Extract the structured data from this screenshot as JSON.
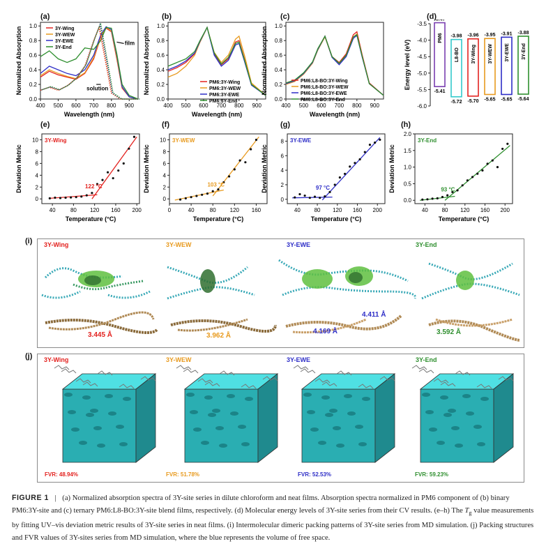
{
  "panel_letters": [
    "(a)",
    "(b)",
    "(c)",
    "(d)",
    "(e)",
    "(f)",
    "(g)",
    "(h)",
    "(i)",
    "(j)"
  ],
  "colors": {
    "wing": "#e3221f",
    "wew": "#e89a1e",
    "ewe": "#2e2ec7",
    "end": "#2f8f2f",
    "pm6": "#7a3fb0",
    "l8bo": "#34c9cc"
  },
  "absorption_a": {
    "legend": [
      "3Y-Wing",
      "3Y-WEW",
      "3Y-EWE",
      "3Y-End"
    ],
    "annotations": [
      "film",
      "solution"
    ],
    "xlabel": "Wavelength (nm)",
    "ylabel": "Normalized Absorption"
  },
  "absorption_b": {
    "legend": [
      "PM6:3Y-Wing",
      "PM6:3Y-WEW",
      "PM6:3Y-EWE",
      "PM6:3Y-End"
    ],
    "xlabel": "Wavelength (nm)",
    "ylabel": "Normalized Absorption"
  },
  "absorption_c": {
    "legend": [
      "PM6:L8-BO:3Y-Wing",
      "PM6:L8-BO:3Y-WEW",
      "PM6:L8-BO:3Y-EWE",
      "PM6:L8-BO:3Y-End"
    ],
    "xlabel": "Wavelength (nm)",
    "ylabel": "Normalized Absorption"
  },
  "chart_data": [
    {
      "type": "line",
      "panel": "a",
      "xlim": [
        400,
        950
      ],
      "ylim": [
        0,
        1.05
      ],
      "xticks": [
        "400",
        "500",
        "600",
        "700",
        "800",
        "900"
      ],
      "yticks": [
        "0.0",
        "0.2",
        "0.4",
        "0.6",
        "0.8",
        "1.0"
      ],
      "series": [
        {
          "name": "3Y-Wing",
          "x": [
            400,
            450,
            500,
            550,
            600,
            650,
            700,
            740,
            770,
            800,
            830,
            860,
            900,
            950
          ],
          "y": [
            0.3,
            0.38,
            0.33,
            0.3,
            0.27,
            0.35,
            0.55,
            0.85,
            0.97,
            0.92,
            0.55,
            0.15,
            0.03,
            0.0
          ]
        },
        {
          "name": "3Y-WEW",
          "x": [
            400,
            450,
            500,
            550,
            600,
            650,
            700,
            740,
            770,
            800,
            830,
            860,
            900,
            950
          ],
          "y": [
            0.32,
            0.4,
            0.35,
            0.31,
            0.28,
            0.36,
            0.57,
            0.86,
            0.98,
            0.93,
            0.57,
            0.16,
            0.03,
            0.0
          ]
        },
        {
          "name": "3Y-EWE",
          "x": [
            400,
            450,
            500,
            550,
            600,
            650,
            700,
            740,
            770,
            800,
            830,
            860,
            900,
            950
          ],
          "y": [
            0.35,
            0.45,
            0.4,
            0.35,
            0.32,
            0.4,
            0.6,
            0.88,
            0.99,
            0.95,
            0.6,
            0.17,
            0.03,
            0.0
          ]
        },
        {
          "name": "3Y-End",
          "x": [
            400,
            450,
            500,
            550,
            600,
            650,
            700,
            740,
            770,
            800,
            830,
            860,
            900,
            950
          ],
          "y": [
            0.58,
            0.66,
            0.55,
            0.5,
            0.55,
            0.7,
            0.68,
            0.8,
            0.98,
            0.97,
            0.62,
            0.2,
            0.05,
            0.0
          ]
        }
      ]
    },
    {
      "type": "line",
      "panel": "b",
      "xlim": [
        400,
        950
      ],
      "ylim": [
        0,
        1.05
      ],
      "xticks": [
        "400",
        "500",
        "600",
        "700",
        "800",
        "900"
      ],
      "yticks": [
        "0.0",
        "0.2",
        "0.4",
        "0.6",
        "0.8",
        "1.0"
      ],
      "series": [
        {
          "name": "PM6:3Y-Wing",
          "x": [
            400,
            450,
            500,
            550,
            580,
            620,
            660,
            700,
            740,
            780,
            800,
            830,
            870,
            950
          ],
          "y": [
            0.38,
            0.43,
            0.5,
            0.62,
            0.78,
            0.98,
            0.62,
            0.47,
            0.55,
            0.78,
            0.8,
            0.55,
            0.2,
            0.05
          ]
        },
        {
          "name": "PM6:3Y-WEW",
          "x": [
            400,
            450,
            500,
            550,
            580,
            620,
            660,
            700,
            740,
            780,
            800,
            830,
            870,
            950
          ],
          "y": [
            0.3,
            0.35,
            0.45,
            0.6,
            0.78,
            0.98,
            0.64,
            0.5,
            0.6,
            0.82,
            0.86,
            0.6,
            0.22,
            0.05
          ]
        },
        {
          "name": "PM6:3Y-EWE",
          "x": [
            400,
            450,
            500,
            550,
            580,
            620,
            660,
            700,
            740,
            780,
            800,
            830,
            870,
            950
          ],
          "y": [
            0.4,
            0.45,
            0.52,
            0.63,
            0.79,
            0.98,
            0.6,
            0.45,
            0.53,
            0.74,
            0.76,
            0.52,
            0.19,
            0.05
          ]
        },
        {
          "name": "PM6:3Y-End",
          "x": [
            400,
            450,
            500,
            550,
            580,
            620,
            660,
            700,
            740,
            780,
            800,
            830,
            870,
            950
          ],
          "y": [
            0.45,
            0.5,
            0.55,
            0.65,
            0.8,
            0.98,
            0.63,
            0.48,
            0.57,
            0.76,
            0.78,
            0.54,
            0.2,
            0.05
          ]
        }
      ]
    },
    {
      "type": "line",
      "panel": "c",
      "xlim": [
        400,
        950
      ],
      "ylim": [
        0,
        1.05
      ],
      "xticks": [
        "400",
        "500",
        "600",
        "700",
        "800",
        "900"
      ],
      "yticks": [
        "0.0",
        "0.2",
        "0.4",
        "0.6",
        "0.8",
        "1.0"
      ],
      "series": [
        {
          "name": "PM6:L8-BO:3Y-Wing",
          "x": [
            400,
            450,
            500,
            550,
            580,
            620,
            660,
            700,
            740,
            780,
            800,
            830,
            870,
            950
          ],
          "y": [
            0.22,
            0.26,
            0.35,
            0.5,
            0.68,
            0.86,
            0.58,
            0.5,
            0.62,
            0.88,
            0.92,
            0.6,
            0.22,
            0.05
          ]
        },
        {
          "name": "PM6:L8-BO:3Y-WEW",
          "x": [
            400,
            450,
            500,
            550,
            580,
            620,
            660,
            700,
            740,
            780,
            800,
            830,
            870,
            950
          ],
          "y": [
            0.2,
            0.24,
            0.34,
            0.49,
            0.67,
            0.85,
            0.57,
            0.48,
            0.6,
            0.85,
            0.89,
            0.58,
            0.21,
            0.05
          ]
        },
        {
          "name": "PM6:L8-BO:3Y-EWE",
          "x": [
            400,
            450,
            500,
            550,
            580,
            620,
            660,
            700,
            740,
            780,
            800,
            830,
            870,
            950
          ],
          "y": [
            0.21,
            0.25,
            0.35,
            0.5,
            0.68,
            0.86,
            0.57,
            0.47,
            0.58,
            0.83,
            0.87,
            0.57,
            0.21,
            0.05
          ]
        },
        {
          "name": "PM6:L8-BO:3Y-End",
          "x": [
            400,
            450,
            500,
            550,
            580,
            620,
            660,
            700,
            740,
            780,
            800,
            830,
            870,
            950
          ],
          "y": [
            0.22,
            0.26,
            0.36,
            0.51,
            0.69,
            0.86,
            0.58,
            0.49,
            0.6,
            0.85,
            0.88,
            0.58,
            0.21,
            0.05
          ]
        }
      ]
    },
    {
      "type": "bar",
      "panel": "d",
      "ylabel": "Energy level (eV)",
      "ylim": [
        -6.0,
        -3.5
      ],
      "yticks": [
        "-3.5",
        "-4.0",
        "-4.5",
        "-5.0",
        "-5.5",
        "-6.0"
      ],
      "categories": [
        "PM6",
        "L8-BO",
        "3Y-Wing",
        "3Y-WEW",
        "3Y-EWE",
        "3Y-End"
      ],
      "lumo": [
        -3.47,
        -3.98,
        -3.96,
        -3.95,
        -3.91,
        -3.88
      ],
      "homo": [
        -5.41,
        -5.72,
        -5.7,
        -5.65,
        -5.65,
        -5.64
      ],
      "lumo_labels": [
        "-3.47",
        "-3.98",
        "-3.96",
        "-3.95",
        "-3.91",
        "-3.88"
      ],
      "homo_labels": [
        "-5.41",
        "-5.72",
        "-5.70",
        "-5.65",
        "-5.65",
        "-5.64"
      ]
    },
    {
      "type": "scatter",
      "panel": "e",
      "title": "3Y-Wing",
      "annotation": "122 °C",
      "xlabel": "Temperature (°C)",
      "ylabel": "Deviation Metric",
      "xlim": [
        20,
        205
      ],
      "ylim": [
        -0.8,
        11
      ],
      "xticks": [
        "40",
        "80",
        "120",
        "160",
        "200"
      ],
      "yticks": [
        "0",
        "2",
        "4",
        "6",
        "8",
        "10"
      ],
      "x": [
        35,
        45,
        55,
        65,
        75,
        85,
        95,
        105,
        115,
        125,
        135,
        145,
        155,
        165,
        175,
        185,
        195
      ],
      "y": [
        0.1,
        0.2,
        0.15,
        0.2,
        0.25,
        0.3,
        0.4,
        0.6,
        1.0,
        2.5,
        3.2,
        4.5,
        3.5,
        4.8,
        6.0,
        8.5,
        10.5
      ],
      "fit1": [
        [
          35,
          0.1
        ],
        [
          125,
          0.7
        ]
      ],
      "fit2": [
        [
          115,
          0.0
        ],
        [
          200,
          10.5
        ]
      ]
    },
    {
      "type": "scatter",
      "panel": "f",
      "title": "3Y-WEW",
      "annotation": "103 °C",
      "xlabel": "Temperature (°C)",
      "ylabel": "Deviation Metric",
      "xlim": [
        15,
        195
      ],
      "ylim": [
        -0.8,
        11
      ],
      "xticks": [
        "0",
        "40",
        "80",
        "120",
        "160"
      ],
      "yticks": [
        "0",
        "2",
        "4",
        "6",
        "8",
        "10"
      ],
      "x": [
        35,
        45,
        55,
        65,
        75,
        85,
        95,
        105,
        115,
        125,
        135,
        145,
        155,
        165,
        175
      ],
      "y": [
        -0.1,
        0.1,
        0.3,
        0.5,
        0.7,
        0.9,
        1.3,
        1.6,
        2.8,
        3.8,
        5.0,
        6.5,
        6.2,
        8.4,
        10.0
      ],
      "fit1": [
        [
          25,
          -0.2
        ],
        [
          115,
          1.5
        ]
      ],
      "fit2": [
        [
          95,
          0.5
        ],
        [
          180,
          10.5
        ]
      ]
    },
    {
      "type": "scatter",
      "panel": "g",
      "title": "3Y-EWE",
      "annotation": "97 °C",
      "xlabel": "Temperature (°C)",
      "ylabel": "Deviation Metric",
      "xlim": [
        20,
        215
      ],
      "ylim": [
        -0.6,
        9
      ],
      "xticks": [
        "40",
        "80",
        "120",
        "160",
        "200"
      ],
      "yticks": [
        "0",
        "2",
        "4",
        "6",
        "8"
      ],
      "x": [
        35,
        45,
        55,
        65,
        75,
        85,
        95,
        105,
        115,
        125,
        135,
        145,
        155,
        165,
        175,
        185,
        195,
        205
      ],
      "y": [
        0.25,
        0.7,
        0.5,
        0.2,
        0.35,
        0.2,
        0.4,
        1.0,
        2.0,
        3.0,
        3.5,
        4.5,
        5.0,
        5.5,
        6.5,
        7.5,
        7.8,
        8.2
      ],
      "fit1": [
        [
          30,
          0.2
        ],
        [
          110,
          0.3
        ]
      ],
      "fit2": [
        [
          90,
          -0.1
        ],
        [
          205,
          8.5
        ]
      ]
    },
    {
      "type": "scatter",
      "panel": "h",
      "title": "3Y-End",
      "annotation": "93 °C",
      "xlabel": "Temperature (°C)",
      "ylabel": "Deviation Metric",
      "xlim": [
        20,
        215
      ],
      "ylim": [
        -0.1,
        2.0
      ],
      "xticks": [
        "40",
        "80",
        "120",
        "160",
        "200"
      ],
      "yticks": [
        "0.0",
        "0.5",
        "1.0",
        "1.5",
        "2.0"
      ],
      "x": [
        35,
        45,
        55,
        65,
        75,
        85,
        95,
        105,
        115,
        125,
        135,
        145,
        155,
        165,
        175,
        185,
        195,
        205
      ],
      "y": [
        0.02,
        0.03,
        0.05,
        0.06,
        0.1,
        0.15,
        0.25,
        0.3,
        0.45,
        0.6,
        0.7,
        0.8,
        0.9,
        1.1,
        1.2,
        1.0,
        1.55,
        1.7
      ],
      "fit1": [
        [
          30,
          0.0
        ],
        [
          100,
          0.12
        ]
      ],
      "fit2": [
        [
          80,
          0.0
        ],
        [
          210,
          1.65
        ]
      ]
    }
  ],
  "panel_i": {
    "labels": [
      "3Y-Wing",
      "3Y-WEW",
      "3Y-EWE",
      "3Y-End"
    ],
    "distances": [
      "3.445 Å",
      "3.962 Å",
      "4.169 Å",
      "4.411 Å",
      "3.592 Å"
    ]
  },
  "panel_j": {
    "labels": [
      "3Y-Wing",
      "3Y-WEW",
      "3Y-EWE",
      "3Y-End"
    ],
    "fvr": [
      "FVR: 48.94%",
      "FVR: 51.78%",
      "FVR: 52.53%",
      "FVR: 59.23%"
    ]
  },
  "caption": {
    "head": "FIGURE 1",
    "sep": "|",
    "p1": "(a) Normalized absorption spectra of 3Y-site series in dilute chloroform and neat films. Absorption spectra normalized in PM6 component of (b) binary PM6:3Y-site and (c) ternary PM6:L8-BO:3Y-site blend films, respectively. (d) Molecular energy levels of 3Y-site series from their CV results. (e–h) The ",
    "tg": "T",
    "tg_sub": "g",
    "p2": " value measurements by fitting UV–vis deviation metric results of 3Y-site series in neat films. (i) Intermolecular dimeric packing patterns of 3Y-site series from MD simulation. (j) Packing structures and FVR values of 3Y-sites series from MD simulation, where the blue represents the volume of free space."
  }
}
